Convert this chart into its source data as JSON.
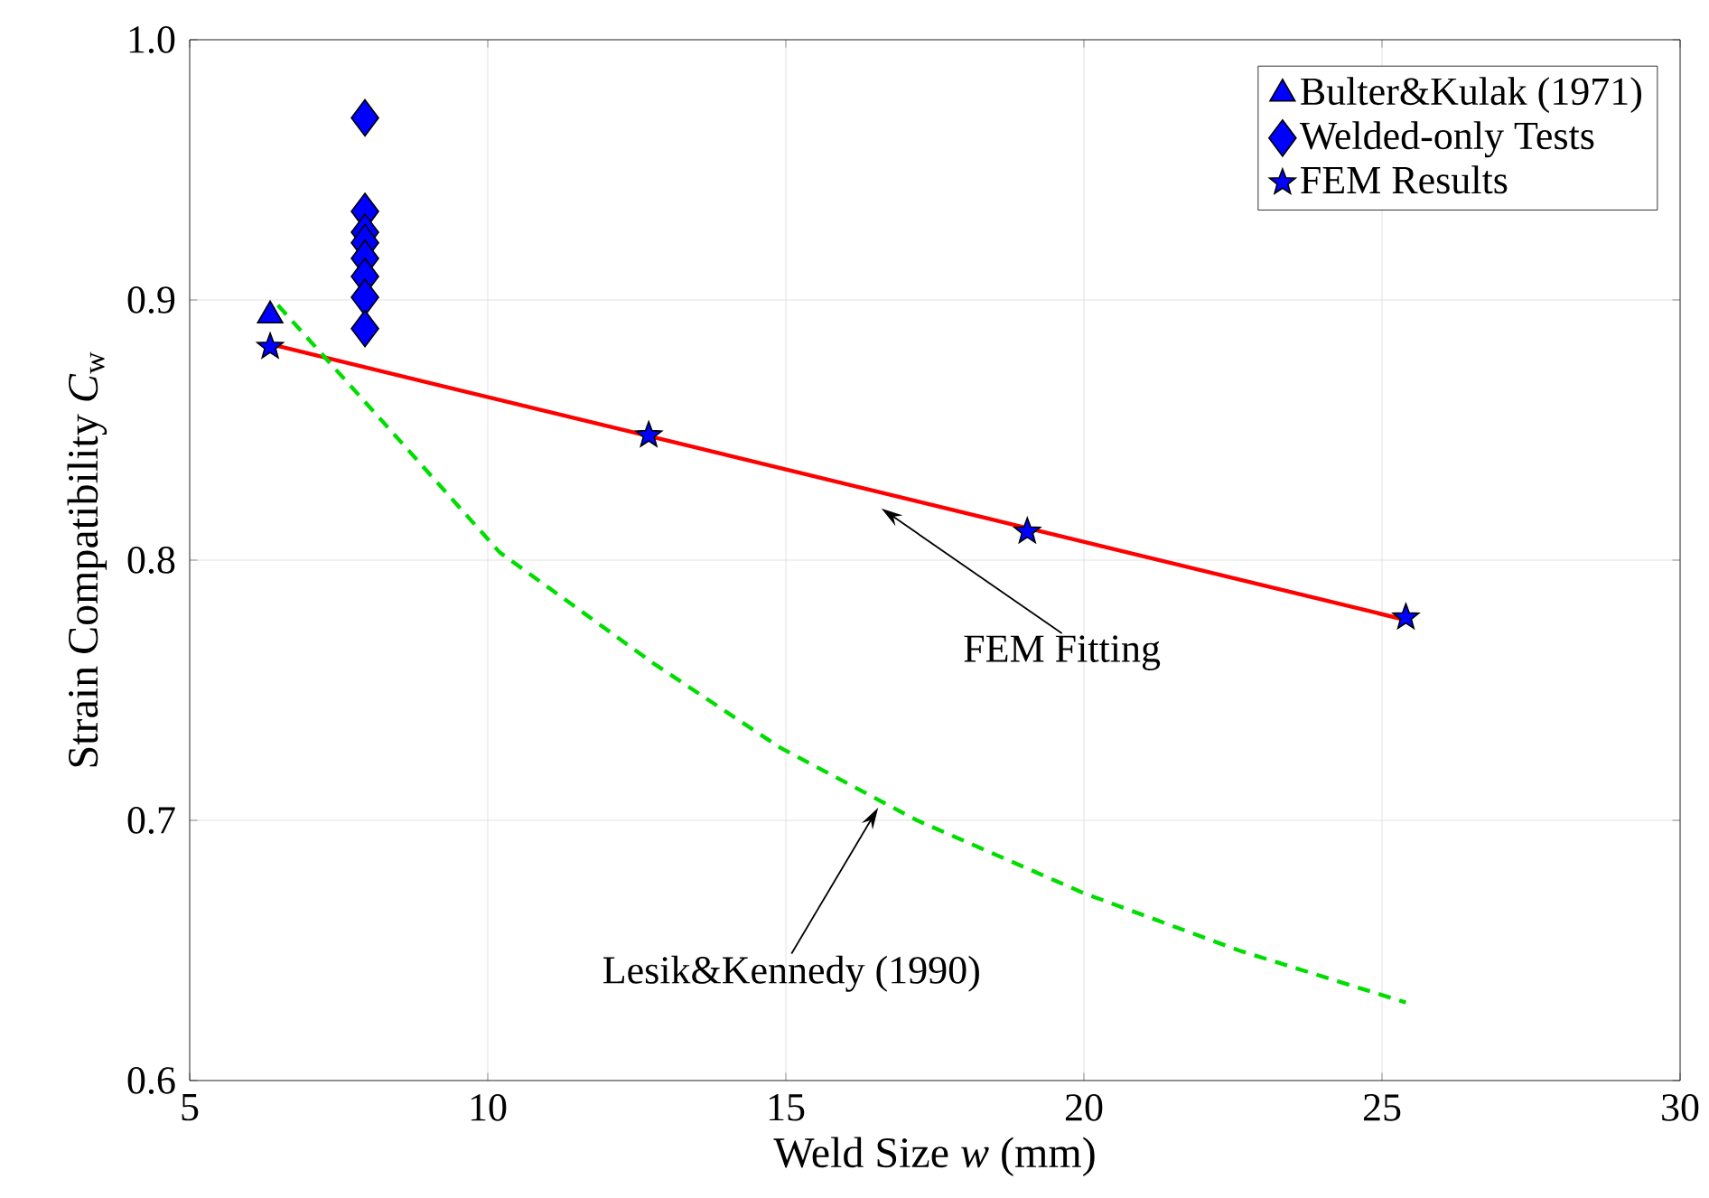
{
  "chart_data": {
    "type": "scatter",
    "xlabel": "Weld Size *w* (mm)",
    "ylabel": "Strain Compatibility *C*$_{w}$",
    "xlim": [
      5,
      30
    ],
    "ylim": [
      0.6,
      1.0
    ],
    "xticks": [
      5,
      10,
      15,
      20,
      25,
      30
    ],
    "yticks": [
      0.6,
      0.7,
      0.8,
      0.9,
      {
        "value": 1.0,
        "label": "1.0"
      }
    ],
    "grid": true,
    "legend": "top right",
    "series": [
      {
        "type": "line",
        "color": "#ff0000",
        "line_style": "solid",
        "marker": "none",
        "x": [
          6.35,
          25.4
        ],
        "values": [
          0.883,
          0.777
        ]
      },
      {
        "type": "line",
        "color": "#00dd00",
        "line_style": "dashed",
        "marker": "none",
        "x": [
          6.48,
          8.6,
          10.2,
          12.8,
          14.9,
          17.2,
          20.0,
          22.6,
          25.4
        ],
        "values": [
          0.898,
          0.844,
          0.803,
          0.76,
          0.728,
          0.7,
          0.672,
          0.65,
          0.63
        ]
      },
      {
        "name": "Bulter&Kulak (1971)",
        "color": "#0000ff",
        "marker": "triangle",
        "x": [
          6.35
        ],
        "values": [
          0.894
        ]
      },
      {
        "name": "Welded-only Tests",
        "color": "#0000ff",
        "marker": "diamond",
        "x": [
          7.94,
          7.94,
          7.94,
          7.94,
          7.94,
          7.94,
          7.94,
          7.94
        ],
        "values": [
          0.97,
          0.934,
          0.926,
          0.922,
          0.916,
          0.909,
          0.901,
          0.889
        ]
      },
      {
        "name": "FEM Results",
        "color": "#0000ff",
        "marker": "star",
        "x": [
          6.35,
          12.7,
          19.05,
          25.4
        ],
        "values": [
          0.882,
          0.848,
          0.811,
          0.778
        ]
      }
    ],
    "annotations": [
      "FEM Fitting",
      "Lesik&Kennedy (1990)"
    ]
  }
}
